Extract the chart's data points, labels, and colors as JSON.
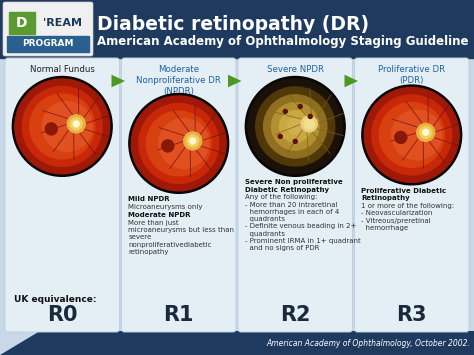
{
  "title_line1": "Diabetic retinopathy (DR)",
  "title_line2": "American Academy of Ophthalmology Staging Guideline",
  "bg_color": "#c8d8e8",
  "header_bg": "#1e3a5f",
  "footer_text": "American Academy of Ophthalmology, October 2002.",
  "stages": [
    {
      "top_label": "Normal Fundus",
      "top_label_color": "#222222",
      "top_label_bold": false,
      "eye_colors": [
        "#1a0800",
        "#5a1005",
        "#a02008",
        "#c83010",
        "#e05020",
        "#d06030",
        "#c85020"
      ],
      "uk_label": "UK equivalence:",
      "rating": "R0",
      "desc_items": []
    },
    {
      "top_label": "Moderate\nNonproliferative DR\n(NPDR)",
      "top_label_color": "#2060a0",
      "top_label_bold": false,
      "eye_colors": [
        "#1a0800",
        "#5a1005",
        "#a02008",
        "#c83010",
        "#d05010",
        "#c84010",
        "#b03010"
      ],
      "uk_label": "",
      "rating": "R1",
      "desc_items": [
        {
          "text": "Mild NPDR",
          "bold": true
        },
        {
          "text": "Microaneurysms only",
          "bold": false
        },
        {
          "text": "Moderate NPDR",
          "bold": true
        },
        {
          "text": "More than just\nmicroaneurysms but less than\nsevere\nnonproliferativediabetic\nretinopathy",
          "bold": false
        }
      ]
    },
    {
      "top_label": "Severe NPDR",
      "top_label_color": "#2060a0",
      "top_label_bold": false,
      "eye_colors": [
        "#101008",
        "#404008",
        "#807010",
        "#b09020",
        "#c0a030",
        "#d0b040",
        "#b09020"
      ],
      "uk_label": "",
      "rating": "R2",
      "desc_items": [
        {
          "text": "Severe Non proliferative\nDiabetic Retinopathy",
          "bold": true
        },
        {
          "text": "Any of the following:",
          "bold": false
        },
        {
          "text": "- More than 20 intraretinal\n  hemorrhages in each of 4\n  quadrants",
          "bold": false
        },
        {
          "text": "- Definite venous beading in 2+\n  quadrants",
          "bold": false
        },
        {
          "text": "- Prominent IRMA in 1+ quadrant\n  and no signs of PDR",
          "bold": false
        }
      ]
    },
    {
      "top_label": "Proliferative DR\n(PDR)",
      "top_label_color": "#2060a0",
      "top_label_bold": false,
      "eye_colors": [
        "#1a0800",
        "#5a1005",
        "#a02008",
        "#c83010",
        "#e05020",
        "#d06030",
        "#c85020"
      ],
      "uk_label": "",
      "rating": "R3",
      "desc_items": [
        {
          "text": "Proliferative Diabetic\nRetinopathy",
          "bold": true
        },
        {
          "text": "1 or more of the following:",
          "bold": false
        },
        {
          "text": "- Neovascularization",
          "bold": false
        },
        {
          "text": "- Vitreous/preretinal\n  hemorrhage",
          "bold": false
        }
      ]
    }
  ]
}
